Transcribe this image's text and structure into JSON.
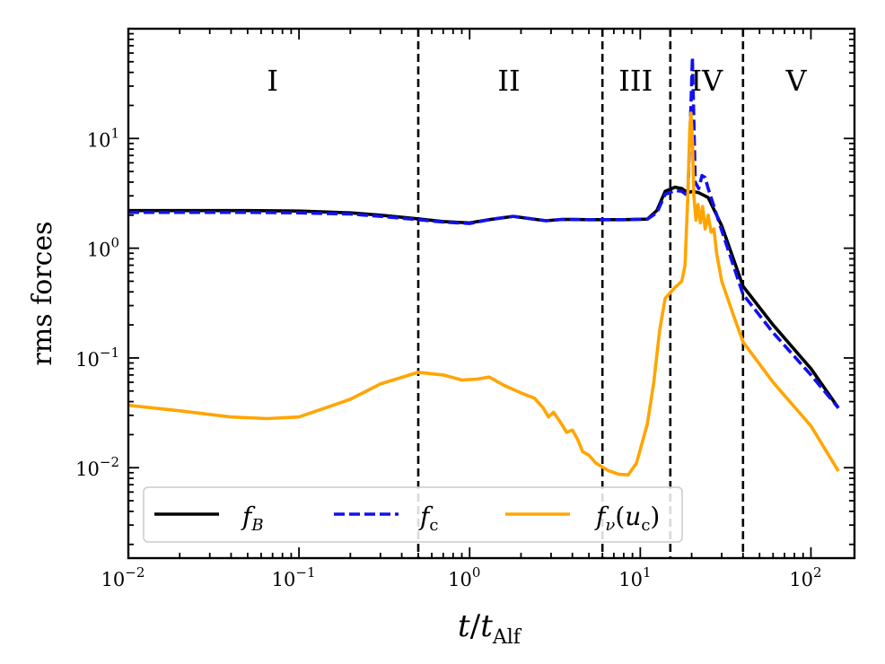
{
  "chart_data": {
    "type": "line",
    "xscale": "log",
    "yscale": "log",
    "xlim": [
      0.01,
      180
    ],
    "ylim": [
      0.0015,
      100
    ],
    "xlabel": {
      "main": "t",
      "sep": "/",
      "var": "t",
      "sub": "Alf"
    },
    "ylabel": "rms forces",
    "x_ticks": [
      {
        "base": "10",
        "exp": "−2",
        "value": 0.01
      },
      {
        "base": "10",
        "exp": "−1",
        "value": 0.1
      },
      {
        "base": "10",
        "exp": "0",
        "value": 1
      },
      {
        "base": "10",
        "exp": "1",
        "value": 10
      },
      {
        "base": "10",
        "exp": "2",
        "value": 100
      }
    ],
    "y_ticks": [
      {
        "base": "10",
        "exp": "−2",
        "value": 0.01
      },
      {
        "base": "10",
        "exp": "−1",
        "value": 0.1
      },
      {
        "base": "10",
        "exp": "0",
        "value": 1
      },
      {
        "base": "10",
        "exp": "1",
        "value": 10
      }
    ],
    "vlines": [
      0.5,
      6,
      15,
      40
    ],
    "regions": [
      {
        "label": "I",
        "x": 0.07
      },
      {
        "label": "II",
        "x": 1.7
      },
      {
        "label": "III",
        "x": 9.4
      },
      {
        "label": "IV",
        "x": 24.5
      },
      {
        "label": "V",
        "x": 82
      }
    ],
    "legend": {
      "position": "lower-left"
    },
    "series": [
      {
        "name": "f_B",
        "legend_main": "f",
        "legend_sub": "B",
        "color": "#000000",
        "style": "solid",
        "points": [
          [
            0.01,
            2.2
          ],
          [
            0.05,
            2.2
          ],
          [
            0.1,
            2.18
          ],
          [
            0.2,
            2.1
          ],
          [
            0.3,
            2.0
          ],
          [
            0.5,
            1.85
          ],
          [
            0.7,
            1.75
          ],
          [
            1.0,
            1.7
          ],
          [
            1.3,
            1.82
          ],
          [
            1.8,
            1.95
          ],
          [
            2.3,
            1.85
          ],
          [
            2.8,
            1.78
          ],
          [
            3.5,
            1.83
          ],
          [
            5,
            1.82
          ],
          [
            8,
            1.82
          ],
          [
            11,
            1.84
          ],
          [
            12.5,
            2.2
          ],
          [
            14,
            3.3
          ],
          [
            16,
            3.6
          ],
          [
            17.5,
            3.5
          ],
          [
            19,
            3.2
          ],
          [
            20.3,
            3.3
          ],
          [
            22,
            3.2
          ],
          [
            25,
            2.9
          ],
          [
            30,
            1.6
          ],
          [
            40,
            0.45
          ],
          [
            60,
            0.2
          ],
          [
            100,
            0.08
          ],
          [
            145,
            0.035
          ]
        ]
      },
      {
        "name": "f_c",
        "legend_main": "f",
        "legend_sub": "c",
        "color": "#1111ee",
        "style": "dashed",
        "points": [
          [
            0.01,
            2.12
          ],
          [
            0.05,
            2.12
          ],
          [
            0.1,
            2.1
          ],
          [
            0.2,
            2.05
          ],
          [
            0.3,
            1.95
          ],
          [
            0.5,
            1.82
          ],
          [
            0.7,
            1.73
          ],
          [
            1.0,
            1.68
          ],
          [
            1.3,
            1.82
          ],
          [
            1.8,
            1.95
          ],
          [
            2.3,
            1.85
          ],
          [
            2.8,
            1.78
          ],
          [
            3.5,
            1.83
          ],
          [
            5,
            1.82
          ],
          [
            8,
            1.82
          ],
          [
            11,
            1.84
          ],
          [
            12.5,
            2.1
          ],
          [
            14,
            3.1
          ],
          [
            16,
            3.35
          ],
          [
            17.5,
            3.3
          ],
          [
            19,
            3.0
          ],
          [
            19.8,
            20
          ],
          [
            20.2,
            55
          ],
          [
            20.6,
            15
          ],
          [
            21,
            4
          ],
          [
            22,
            3.5
          ],
          [
            23,
            4.6
          ],
          [
            24,
            4.4
          ],
          [
            25,
            3.5
          ],
          [
            30,
            1.45
          ],
          [
            40,
            0.38
          ],
          [
            60,
            0.17
          ],
          [
            100,
            0.07
          ],
          [
            145,
            0.035
          ]
        ]
      },
      {
        "name": "f_nu(u_c)",
        "legend_main": "f",
        "legend_sub": "ν",
        "legend_arg": "(u",
        "legend_arg_sub": "c",
        "legend_close": ")",
        "color": "#ffa500",
        "style": "solid",
        "points": [
          [
            0.01,
            0.037
          ],
          [
            0.02,
            0.033
          ],
          [
            0.04,
            0.029
          ],
          [
            0.065,
            0.028
          ],
          [
            0.1,
            0.029
          ],
          [
            0.2,
            0.042
          ],
          [
            0.3,
            0.058
          ],
          [
            0.5,
            0.074
          ],
          [
            0.7,
            0.07
          ],
          [
            0.9,
            0.063
          ],
          [
            1.1,
            0.064
          ],
          [
            1.3,
            0.067
          ],
          [
            1.6,
            0.056
          ],
          [
            2.0,
            0.048
          ],
          [
            2.4,
            0.043
          ],
          [
            2.7,
            0.035
          ],
          [
            2.9,
            0.029
          ],
          [
            3.1,
            0.032
          ],
          [
            3.4,
            0.026
          ],
          [
            3.7,
            0.021
          ],
          [
            4.0,
            0.022
          ],
          [
            4.3,
            0.018
          ],
          [
            4.6,
            0.014
          ],
          [
            5.0,
            0.013
          ],
          [
            5.5,
            0.011
          ],
          [
            6.5,
            0.0094
          ],
          [
            7.5,
            0.0087
          ],
          [
            8.5,
            0.0086
          ],
          [
            9.5,
            0.011
          ],
          [
            11,
            0.025
          ],
          [
            12,
            0.06
          ],
          [
            13,
            0.18
          ],
          [
            14,
            0.35
          ],
          [
            16,
            0.44
          ],
          [
            17.5,
            0.5
          ],
          [
            18.3,
            0.7
          ],
          [
            19.0,
            3.0
          ],
          [
            19.5,
            12
          ],
          [
            19.8,
            17
          ],
          [
            20.2,
            10
          ],
          [
            20.6,
            3
          ],
          [
            21.2,
            1.8
          ],
          [
            21.8,
            2.5
          ],
          [
            22.5,
            1.7
          ],
          [
            23.2,
            2.4
          ],
          [
            24,
            1.5
          ],
          [
            25,
            2.0
          ],
          [
            26,
            1.4
          ],
          [
            27,
            1.5
          ],
          [
            28,
            0.9
          ],
          [
            30,
            0.5
          ],
          [
            35,
            0.25
          ],
          [
            40,
            0.14
          ],
          [
            60,
            0.06
          ],
          [
            100,
            0.024
          ],
          [
            145,
            0.0093
          ]
        ]
      }
    ]
  }
}
